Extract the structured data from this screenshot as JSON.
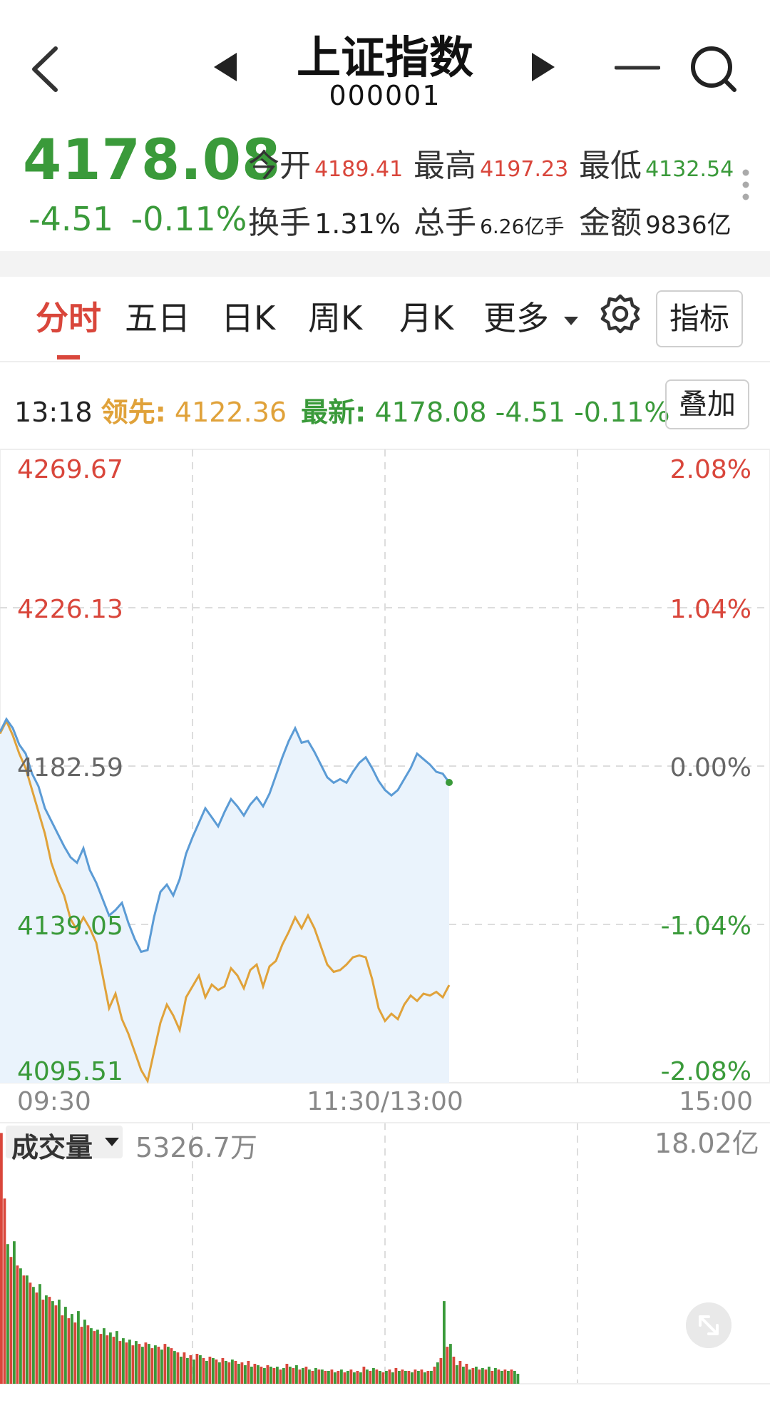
{
  "header": {
    "title": "上证指数",
    "code": "000001"
  },
  "quote": {
    "price": "4178.08",
    "change": "-4.51",
    "change_pct": "-0.11%",
    "stats": [
      {
        "label": "今开",
        "value": "4189.41",
        "color": "#d9463b"
      },
      {
        "label": "最高",
        "value": "4197.23",
        "color": "#d9463b"
      },
      {
        "label": "最低",
        "value": "4132.54",
        "color": "#3a9a3a"
      },
      {
        "label": "换手",
        "value": "1.31%",
        "color": "#222222"
      },
      {
        "label": "总手",
        "value": "6.26亿手",
        "color": "#222222"
      },
      {
        "label": "金额",
        "value": "9836亿",
        "color": "#222222"
      }
    ]
  },
  "tabs": {
    "items": [
      "分时",
      "五日",
      "日K",
      "周K",
      "月K",
      "更多"
    ],
    "active": "分时",
    "indicator_label": "指标"
  },
  "info_line": {
    "time": "13:18",
    "lead_label": "领先:",
    "lead_value": "4122.36",
    "latest_label": "最新:",
    "latest_value": "4178.08",
    "latest_change": "-4.51",
    "latest_pct": "-0.11%",
    "overlay_label": "叠加"
  },
  "colors": {
    "up": "#d9463b",
    "down": "#3a9a3a",
    "price_line": "#5b9bd5",
    "lead_line": "#e0a23a",
    "area_fill": "#eaf3fc"
  },
  "chart_data": {
    "type": "line",
    "y_left_ticks": [
      "4269.67",
      "4226.13",
      "4182.59",
      "4139.05",
      "4095.51"
    ],
    "y_right_ticks": [
      "2.08%",
      "1.04%",
      "0.00%",
      "-1.04%",
      "-2.08%"
    ],
    "ylim": [
      4095.51,
      4269.67
    ],
    "prev_close": 4182.59,
    "x_labels": [
      "09:30",
      "11:30/13:00",
      "15:00"
    ],
    "total_points": 241,
    "price_series": [
      [
        0,
        4192.0
      ],
      [
        2,
        4195.5
      ],
      [
        4,
        4193.0
      ],
      [
        6,
        4188.5
      ],
      [
        8,
        4186.0
      ],
      [
        10,
        4180.5
      ],
      [
        12,
        4177.0
      ],
      [
        14,
        4171.0
      ],
      [
        16,
        4167.5
      ],
      [
        18,
        4164.0
      ],
      [
        20,
        4160.5
      ],
      [
        22,
        4157.5
      ],
      [
        24,
        4156.0
      ],
      [
        26,
        4160.0
      ],
      [
        28,
        4154.0
      ],
      [
        30,
        4150.5
      ],
      [
        32,
        4146.0
      ],
      [
        34,
        4141.5
      ],
      [
        36,
        4143.0
      ],
      [
        38,
        4145.0
      ],
      [
        40,
        4139.5
      ],
      [
        42,
        4135.0
      ],
      [
        44,
        4131.5
      ],
      [
        46,
        4132.0
      ],
      [
        48,
        4141.0
      ],
      [
        50,
        4148.0
      ],
      [
        52,
        4150.0
      ],
      [
        54,
        4147.0
      ],
      [
        56,
        4151.5
      ],
      [
        58,
        4158.5
      ],
      [
        60,
        4163.0
      ],
      [
        62,
        4167.0
      ],
      [
        64,
        4171.0
      ],
      [
        66,
        4168.5
      ],
      [
        68,
        4166.0
      ],
      [
        70,
        4170.0
      ],
      [
        72,
        4173.5
      ],
      [
        74,
        4171.5
      ],
      [
        76,
        4169.0
      ],
      [
        78,
        4172.0
      ],
      [
        80,
        4174.0
      ],
      [
        82,
        4171.5
      ],
      [
        84,
        4175.0
      ],
      [
        86,
        4180.0
      ],
      [
        88,
        4185.0
      ],
      [
        90,
        4189.5
      ],
      [
        92,
        4193.0
      ],
      [
        94,
        4189.0
      ],
      [
        96,
        4189.5
      ],
      [
        98,
        4186.5
      ],
      [
        100,
        4183.0
      ],
      [
        102,
        4179.5
      ],
      [
        104,
        4178.0
      ],
      [
        106,
        4179.0
      ],
      [
        108,
        4178.0
      ],
      [
        110,
        4181.0
      ],
      [
        112,
        4183.5
      ],
      [
        114,
        4185.0
      ],
      [
        116,
        4182.0
      ],
      [
        118,
        4178.5
      ],
      [
        120,
        4176.0
      ],
      [
        122,
        4174.5
      ],
      [
        124,
        4176.0
      ],
      [
        126,
        4179.0
      ],
      [
        128,
        4182.0
      ],
      [
        130,
        4186.0
      ],
      [
        132,
        4184.5
      ],
      [
        134,
        4183.0
      ],
      [
        136,
        4181.0
      ],
      [
        138,
        4180.5
      ],
      [
        140,
        4178.08
      ]
    ],
    "lead_series": [
      [
        0,
        4191.5
      ],
      [
        2,
        4195.0
      ],
      [
        4,
        4191.0
      ],
      [
        6,
        4186.0
      ],
      [
        8,
        4182.0
      ],
      [
        10,
        4176.0
      ],
      [
        12,
        4170.0
      ],
      [
        14,
        4164.0
      ],
      [
        16,
        4156.0
      ],
      [
        18,
        4151.0
      ],
      [
        20,
        4147.0
      ],
      [
        22,
        4140.5
      ],
      [
        24,
        4137.5
      ],
      [
        26,
        4141.0
      ],
      [
        28,
        4138.0
      ],
      [
        30,
        4134.0
      ],
      [
        32,
        4125.0
      ],
      [
        34,
        4116.0
      ],
      [
        36,
        4120.0
      ],
      [
        38,
        4113.0
      ],
      [
        40,
        4109.0
      ],
      [
        42,
        4104.0
      ],
      [
        44,
        4099.0
      ],
      [
        46,
        4096.0
      ],
      [
        48,
        4104.0
      ],
      [
        50,
        4112.0
      ],
      [
        52,
        4117.0
      ],
      [
        54,
        4114.0
      ],
      [
        56,
        4110.0
      ],
      [
        58,
        4119.0
      ],
      [
        60,
        4122.0
      ],
      [
        62,
        4125.0
      ],
      [
        64,
        4119.0
      ],
      [
        66,
        4122.5
      ],
      [
        68,
        4121.0
      ],
      [
        70,
        4122.0
      ],
      [
        72,
        4127.0
      ],
      [
        74,
        4125.0
      ],
      [
        76,
        4121.5
      ],
      [
        78,
        4126.5
      ],
      [
        80,
        4128.0
      ],
      [
        82,
        4122.0
      ],
      [
        84,
        4127.5
      ],
      [
        86,
        4129.0
      ],
      [
        88,
        4133.5
      ],
      [
        90,
        4137.0
      ],
      [
        92,
        4141.0
      ],
      [
        94,
        4138.0
      ],
      [
        96,
        4141.5
      ],
      [
        98,
        4138.0
      ],
      [
        100,
        4133.0
      ],
      [
        102,
        4128.0
      ],
      [
        104,
        4126.0
      ],
      [
        106,
        4126.5
      ],
      [
        108,
        4128.0
      ],
      [
        110,
        4130.0
      ],
      [
        112,
        4130.5
      ],
      [
        114,
        4130.0
      ],
      [
        116,
        4124.0
      ],
      [
        118,
        4116.0
      ],
      [
        120,
        4112.5
      ],
      [
        122,
        4114.5
      ],
      [
        124,
        4113.0
      ],
      [
        126,
        4117.0
      ],
      [
        128,
        4119.5
      ],
      [
        130,
        4118.0
      ],
      [
        132,
        4120.0
      ],
      [
        134,
        4119.5
      ],
      [
        136,
        4120.5
      ],
      [
        138,
        4119.0
      ],
      [
        140,
        4122.36
      ]
    ],
    "volume": {
      "label": "成交量",
      "current": "5326.7万",
      "max_label": "18.02亿",
      "max": 18.02,
      "bars": [
        [
          "up",
          17.6
        ],
        [
          "up",
          13.0
        ],
        [
          "down",
          9.8
        ],
        [
          "up",
          8.9
        ],
        [
          "down",
          10.0
        ],
        [
          "up",
          8.3
        ],
        [
          "down",
          8.1
        ],
        [
          "up",
          7.6
        ],
        [
          "down",
          7.6
        ],
        [
          "up",
          7.1
        ],
        [
          "down",
          6.8
        ],
        [
          "up",
          6.4
        ],
        [
          "down",
          7.0
        ],
        [
          "up",
          5.9
        ],
        [
          "down",
          6.2
        ],
        [
          "up",
          6.1
        ],
        [
          "down",
          5.8
        ],
        [
          "up",
          5.5
        ],
        [
          "down",
          5.9
        ],
        [
          "up",
          4.8
        ],
        [
          "down",
          5.4
        ],
        [
          "up",
          4.6
        ],
        [
          "down",
          4.9
        ],
        [
          "up",
          4.3
        ],
        [
          "down",
          5.1
        ],
        [
          "up",
          4.0
        ],
        [
          "down",
          4.5
        ],
        [
          "up",
          4.1
        ],
        [
          "down",
          3.9
        ],
        [
          "up",
          3.7
        ],
        [
          "down",
          3.8
        ],
        [
          "up",
          3.5
        ],
        [
          "down",
          3.9
        ],
        [
          "up",
          3.4
        ],
        [
          "down",
          3.6
        ],
        [
          "up",
          3.3
        ],
        [
          "down",
          3.7
        ],
        [
          "up",
          3.0
        ],
        [
          "down",
          3.2
        ],
        [
          "up",
          2.9
        ],
        [
          "down",
          3.1
        ],
        [
          "up",
          2.7
        ],
        [
          "down",
          3.0
        ],
        [
          "up",
          2.8
        ],
        [
          "down",
          2.6
        ],
        [
          "up",
          2.9
        ],
        [
          "down",
          2.8
        ],
        [
          "up",
          2.5
        ],
        [
          "down",
          2.7
        ],
        [
          "up",
          2.6
        ],
        [
          "down",
          2.4
        ],
        [
          "up",
          2.8
        ],
        [
          "down",
          2.6
        ],
        [
          "up",
          2.5
        ],
        [
          "down",
          2.3
        ],
        [
          "up",
          2.2
        ],
        [
          "down",
          1.9
        ],
        [
          "up",
          2.2
        ],
        [
          "down",
          1.8
        ],
        [
          "up",
          2.0
        ],
        [
          "down",
          1.7
        ],
        [
          "up",
          2.1
        ],
        [
          "down",
          2.0
        ],
        [
          "up",
          1.8
        ],
        [
          "down",
          1.6
        ],
        [
          "up",
          1.9
        ],
        [
          "down",
          1.8
        ],
        [
          "up",
          1.7
        ],
        [
          "down",
          1.5
        ],
        [
          "up",
          1.8
        ],
        [
          "down",
          1.6
        ],
        [
          "up",
          1.5
        ],
        [
          "down",
          1.7
        ],
        [
          "up",
          1.6
        ],
        [
          "down",
          1.4
        ],
        [
          "up",
          1.5
        ],
        [
          "down",
          1.3
        ],
        [
          "up",
          1.6
        ],
        [
          "down",
          1.2
        ],
        [
          "up",
          1.4
        ],
        [
          "down",
          1.3
        ],
        [
          "up",
          1.2
        ],
        [
          "down",
          1.1
        ],
        [
          "up",
          1.3
        ],
        [
          "down",
          1.2
        ],
        [
          "up",
          1.1
        ],
        [
          "down",
          1.2
        ],
        [
          "up",
          1.0
        ],
        [
          "down",
          1.1
        ],
        [
          "up",
          1.4
        ],
        [
          "down",
          1.2
        ],
        [
          "up",
          1.1
        ],
        [
          "down",
          1.3
        ],
        [
          "up",
          1.0
        ],
        [
          "down",
          1.1
        ],
        [
          "up",
          1.2
        ],
        [
          "down",
          1.0
        ],
        [
          "up",
          0.9
        ],
        [
          "down",
          1.1
        ],
        [
          "up",
          1.0
        ],
        [
          "down",
          1.0
        ],
        [
          "up",
          0.9
        ],
        [
          "down",
          0.9
        ],
        [
          "up",
          1.0
        ],
        [
          "down",
          0.8
        ],
        [
          "up",
          0.9
        ],
        [
          "down",
          1.0
        ],
        [
          "up",
          0.8
        ],
        [
          "down",
          0.9
        ],
        [
          "up",
          1.0
        ],
        [
          "down",
          0.8
        ],
        [
          "up",
          0.9
        ],
        [
          "down",
          0.8
        ],
        [
          "up",
          1.2
        ],
        [
          "down",
          1.0
        ],
        [
          "up",
          0.9
        ],
        [
          "down",
          1.1
        ],
        [
          "up",
          1.0
        ],
        [
          "down",
          0.9
        ],
        [
          "up",
          0.8
        ],
        [
          "down",
          0.9
        ],
        [
          "up",
          1.0
        ],
        [
          "down",
          0.8
        ],
        [
          "up",
          1.1
        ],
        [
          "down",
          0.9
        ],
        [
          "up",
          1.0
        ],
        [
          "down",
          0.9
        ],
        [
          "up",
          0.9
        ],
        [
          "down",
          0.8
        ],
        [
          "up",
          1.0
        ],
        [
          "down",
          0.9
        ],
        [
          "up",
          1.0
        ],
        [
          "down",
          0.8
        ],
        [
          "up",
          0.9
        ],
        [
          "down",
          0.9
        ],
        [
          "up",
          1.2
        ],
        [
          "down",
          1.5
        ],
        [
          "up",
          1.8
        ],
        [
          "down",
          5.8
        ],
        [
          "up",
          2.6
        ],
        [
          "down",
          2.8
        ],
        [
          "up",
          1.9
        ],
        [
          "down",
          1.3
        ],
        [
          "up",
          1.6
        ],
        [
          "down",
          1.2
        ],
        [
          "up",
          1.4
        ],
        [
          "down",
          1.0
        ],
        [
          "up",
          1.1
        ],
        [
          "down",
          1.2
        ],
        [
          "up",
          1.0
        ],
        [
          "down",
          1.1
        ],
        [
          "up",
          1.0
        ],
        [
          "down",
          1.2
        ],
        [
          "up",
          0.9
        ],
        [
          "down",
          1.1
        ],
        [
          "up",
          1.0
        ],
        [
          "down",
          0.9
        ],
        [
          "up",
          1.0
        ],
        [
          "down",
          0.9
        ],
        [
          "up",
          1.0
        ],
        [
          "down",
          0.9
        ],
        [
          "down",
          0.7
        ]
      ]
    }
  }
}
